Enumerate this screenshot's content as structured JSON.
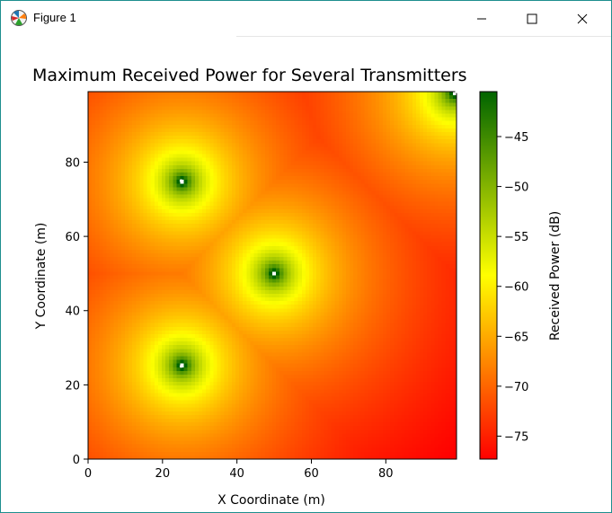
{
  "window": {
    "title": "Figure 1",
    "icons": {
      "app": "matplotlib-icon",
      "minimize": "minimize-icon",
      "maximize": "maximize-icon",
      "close": "close-icon"
    }
  },
  "chart_data": {
    "type": "heatmap",
    "title": "Maximum Received Power for Several Transmitters",
    "xlabel": "X Coordinate (m)",
    "ylabel": "Y Coordinate (m)",
    "colorbar_label": "Received Power (dB)",
    "xlim": [
      0,
      99
    ],
    "ylim": [
      0,
      99
    ],
    "x_ticks": [
      0,
      20,
      40,
      60,
      80
    ],
    "y_ticks": [
      0,
      20,
      40,
      60,
      80
    ],
    "colorbar_ticks": [
      -45,
      -50,
      -55,
      -60,
      -65,
      -70,
      -75
    ],
    "colorbar_range": [
      -77.3,
      -40.5
    ],
    "colormap": [
      "#ff0000",
      "#ffff00",
      "#006400"
    ],
    "grid": false,
    "transmitters": [
      {
        "x": 25,
        "y": 75
      },
      {
        "x": 50,
        "y": 50
      },
      {
        "x": 25,
        "y": 25
      },
      {
        "x": 99,
        "y": 99
      }
    ]
  }
}
